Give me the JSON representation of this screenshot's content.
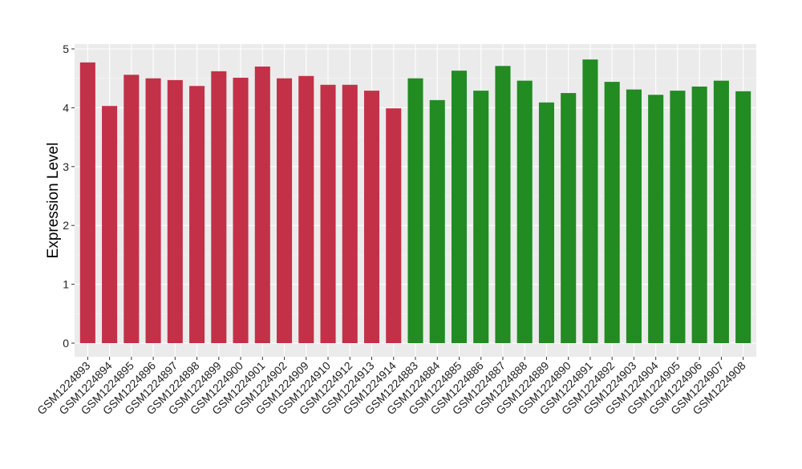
{
  "chart_data": {
    "type": "bar",
    "title": "",
    "xlabel": "",
    "ylabel": "Expression Level",
    "ylim": [
      0,
      5
    ],
    "yticks": [
      0,
      1,
      2,
      3,
      4,
      5
    ],
    "grid": true,
    "categories": [
      "GSM1224893",
      "GSM1224894",
      "GSM1224895",
      "GSM1224896",
      "GSM1224897",
      "GSM1224898",
      "GSM1224899",
      "GSM1224900",
      "GSM1224901",
      "GSM1224902",
      "GSM1224909",
      "GSM1224910",
      "GSM1224912",
      "GSM1224913",
      "GSM1224914",
      "GSM1224883",
      "GSM1224884",
      "GSM1224885",
      "GSM1224886",
      "GSM1224887",
      "GSM1224888",
      "GSM1224889",
      "GSM1224890",
      "GSM1224891",
      "GSM1224892",
      "GSM1224903",
      "GSM1224904",
      "GSM1224905",
      "GSM1224906",
      "GSM1224907",
      "GSM1224908"
    ],
    "values": [
      4.77,
      4.03,
      4.56,
      4.5,
      4.47,
      4.37,
      4.62,
      4.51,
      4.7,
      4.5,
      4.54,
      4.39,
      4.39,
      4.29,
      3.99,
      4.5,
      4.13,
      4.63,
      4.29,
      4.71,
      4.46,
      4.09,
      4.25,
      4.82,
      4.44,
      4.31,
      4.22,
      4.29,
      4.36,
      4.46,
      4.28
    ],
    "groups": [
      "red",
      "red",
      "red",
      "red",
      "red",
      "red",
      "red",
      "red",
      "red",
      "red",
      "red",
      "red",
      "red",
      "red",
      "red",
      "green",
      "green",
      "green",
      "green",
      "green",
      "green",
      "green",
      "green",
      "green",
      "green",
      "green",
      "green",
      "green",
      "green",
      "green",
      "green"
    ],
    "colors": {
      "red": "#c33148",
      "green": "#228b22"
    }
  }
}
